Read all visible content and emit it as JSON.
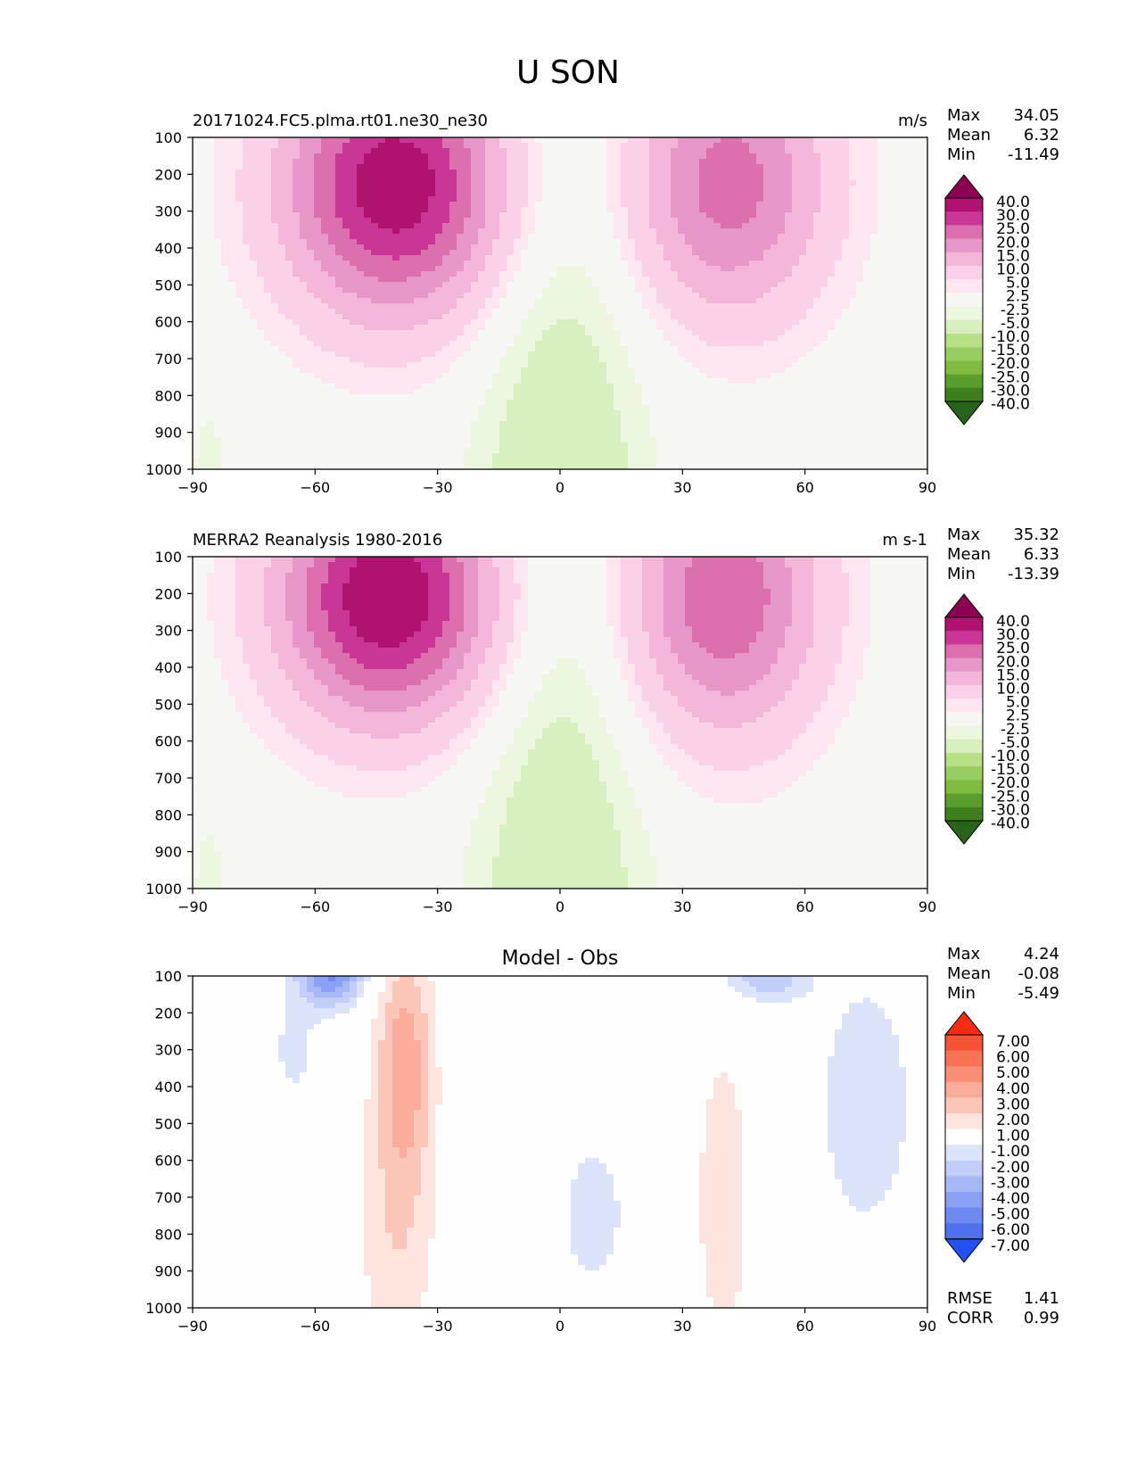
{
  "figure": {
    "title": "U SON"
  },
  "colors": {
    "contour_pos": [
      "#f7f7f6",
      "#fde6f0",
      "#fad1e6",
      "#f3b6d9",
      "#e898c8",
      "#dc70af",
      "#c93695",
      "#b0136f",
      "#8e0152"
    ],
    "contour_neg": [
      "#f7f7f6",
      "#edf6df",
      "#d8f0bf",
      "#b8e186",
      "#98cd64",
      "#7fbc41",
      "#5c9e2e",
      "#3f7f1d",
      "#276419"
    ],
    "diff_pos": [
      "#fdfdfd",
      "#fde4df",
      "#fcc7b9",
      "#fbab99",
      "#fa8f76",
      "#f87256",
      "#f65234",
      "#f52b12"
    ],
    "diff_neg": [
      "#fdfdfd",
      "#dce4fb",
      "#c2cef9",
      "#a7b8f6",
      "#8aa0f2",
      "#6e8af0",
      "#5071ee",
      "#2450f2"
    ]
  },
  "chart_data": [
    {
      "id": "model",
      "type": "contour",
      "title_left": "20171024.FC5.plma.rt01.ne30_ne30",
      "title_right": "m/s",
      "stats": {
        "max_label": "Max",
        "max": "34.05",
        "mean_label": "Mean",
        "mean": "6.32",
        "min_label": "Min",
        "min": "-11.49"
      },
      "x_ticks": [
        "−90",
        "−60",
        "−30",
        "0",
        "30",
        "60",
        "90"
      ],
      "y_ticks": [
        "100",
        "200",
        "300",
        "400",
        "500",
        "600",
        "700",
        "800",
        "900",
        "1000"
      ],
      "xlim": [
        -90,
        90
      ],
      "ylim": [
        100,
        1000
      ],
      "colorbar_labels": [
        "40.0",
        "30.0",
        "25.0",
        "20.0",
        "15.0",
        "10.0",
        "5.0",
        "2.5",
        "-2.5",
        "-5.0",
        "-10.0",
        "-15.0",
        "-20.0",
        "-25.0",
        "-30.0",
        "-40.0"
      ],
      "jets": [
        {
          "lat": -40,
          "p": 230,
          "peak": 34.05,
          "wlat": 28,
          "wp": 360
        },
        {
          "lat": 41,
          "p": 225,
          "peak": 22.5,
          "wlat": 25,
          "wp": 370
        }
      ]
    },
    {
      "id": "obs",
      "type": "contour",
      "title_left": "MERRA2 Reanalysis 1980-2016",
      "title_right": "m s-1",
      "stats": {
        "max_label": "Max",
        "max": "35.32",
        "mean_label": "Mean",
        "mean": "6.33",
        "min_label": "Min",
        "min": "-13.39"
      },
      "x_ticks": [
        "−90",
        "−60",
        "−30",
        "0",
        "30",
        "60",
        "90"
      ],
      "y_ticks": [
        "100",
        "200",
        "300",
        "400",
        "500",
        "600",
        "700",
        "800",
        "900",
        "1000"
      ],
      "xlim": [
        -90,
        90
      ],
      "ylim": [
        100,
        1000
      ],
      "colorbar_labels": [
        "40.0",
        "30.0",
        "25.0",
        "20.0",
        "15.0",
        "10.0",
        "5.0",
        "2.5",
        "-2.5",
        "-5.0",
        "-10.0",
        "-15.0",
        "-20.0",
        "-25.0",
        "-30.0",
        "-40.0"
      ],
      "jets": [
        {
          "lat": -42,
          "p": 210,
          "peak": 35.32,
          "wlat": 27,
          "wp": 340
        },
        {
          "lat": 40,
          "p": 210,
          "peak": 24.5,
          "wlat": 24,
          "wp": 380
        }
      ]
    },
    {
      "id": "diff",
      "type": "contour",
      "title_center": "Model - Obs",
      "stats": {
        "max_label": "Max",
        "max": "4.24",
        "mean_label": "Mean",
        "mean": "-0.08",
        "min_label": "Min",
        "min": "-5.49"
      },
      "x_ticks": [
        "−90",
        "−60",
        "−30",
        "0",
        "30",
        "60",
        "90"
      ],
      "y_ticks": [
        "100",
        "200",
        "300",
        "400",
        "500",
        "600",
        "700",
        "800",
        "900",
        "1000"
      ],
      "xlim": [
        -90,
        90
      ],
      "ylim": [
        100,
        1000
      ],
      "colorbar_labels": [
        "7.00",
        "6.00",
        "5.00",
        "4.00",
        "3.00",
        "2.00",
        "1.00",
        "-1.00",
        "-2.00",
        "-3.00",
        "-4.00",
        "-5.00",
        "-6.00",
        "-7.00"
      ],
      "metrics": {
        "rmse_label": "RMSE",
        "rmse": "1.41",
        "corr_label": "CORR",
        "corr": "0.99"
      }
    }
  ]
}
